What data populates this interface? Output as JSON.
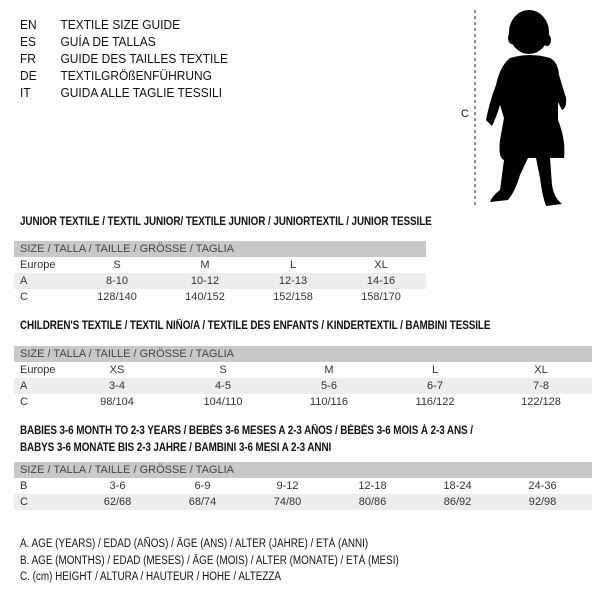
{
  "title_lines": [
    {
      "code": "EN",
      "text": "TEXTILE SIZE GUIDE"
    },
    {
      "code": "ES",
      "text": "GUÍA DE TALLAS"
    },
    {
      "code": "FR",
      "text": "GUIDE DES TAILLES TEXTILE"
    },
    {
      "code": "DE",
      "text": "TEXTILGRÖßENFÜHRUNG"
    },
    {
      "code": "IT",
      "text": "GUIDA ALLE TAGLIE TESSILI"
    }
  ],
  "figure": {
    "measure_label": "C",
    "icon": "baby-silhouette-icon"
  },
  "size_header": "SIZE / TALLA / TAILLE / GRÖSSE / TAGLIA",
  "junior": {
    "heading": "JUNIOR TEXTILE / TEXTIL JUNIOR/ TEXTILE JUNIOR / JUNIORTEXTIL / JUNIOR TESSILE",
    "rows": [
      {
        "label": "Europe",
        "values": [
          "S",
          "M",
          "L",
          "XL"
        ]
      },
      {
        "label": "A",
        "values": [
          "8-10",
          "10-12",
          "12-13",
          "14-16"
        ]
      },
      {
        "label": "C",
        "values": [
          "128/140",
          "140/152",
          "152/158",
          "158/170"
        ]
      }
    ]
  },
  "children": {
    "heading": "CHILDREN'S TEXTILE / TEXTIL NIÑO/A / TEXTILE DES ENFANTS / KINDERTEXTIL / BAMBINI TESSILE",
    "rows": [
      {
        "label": "Europe",
        "values": [
          "XS",
          "S",
          "M",
          "L",
          "XL"
        ]
      },
      {
        "label": "A",
        "values": [
          "3-4",
          "4-5",
          "5-6",
          "6-7",
          "7-8"
        ]
      },
      {
        "label": "C",
        "values": [
          "98/104",
          "104/110",
          "110/116",
          "116/122",
          "122/128"
        ]
      }
    ]
  },
  "babies": {
    "heading_line1": "BABIES 3-6 MONTH TO 2-3 YEARS / BEBÉS 3-6 MESES A 2-3 AÑOS / BÉBÉS 3-6 MOIS À 2-3 ANS /",
    "heading_line2": "BABYS 3-6 MONATE BIS 2-3 JAHRE / BAMBINI 3-6 MESI A 2-3 ANNI",
    "rows": [
      {
        "label": "B",
        "values": [
          "3-6",
          "6-9",
          "9-12",
          "12-18",
          "18-24",
          "24-36"
        ]
      },
      {
        "label": "C",
        "values": [
          "62/68",
          "68/74",
          "74/80",
          "80/86",
          "86/92",
          "92/98"
        ]
      }
    ]
  },
  "legend": [
    "A. AGE (YEARS) / EDAD (AÑOS) / ÂGE (ANS) / ALTER (JAHRE) / ETÀ (ANNI)",
    "B. AGE (MONTHS) / EDAD (MESES) / ÂGE (MOIS) / ALTER (MONATE) / ETÀ (MESI)",
    "C. (cm) HEIGHT / ALTURA / HAUTEUR / HÖHE / ALTEZZA"
  ]
}
